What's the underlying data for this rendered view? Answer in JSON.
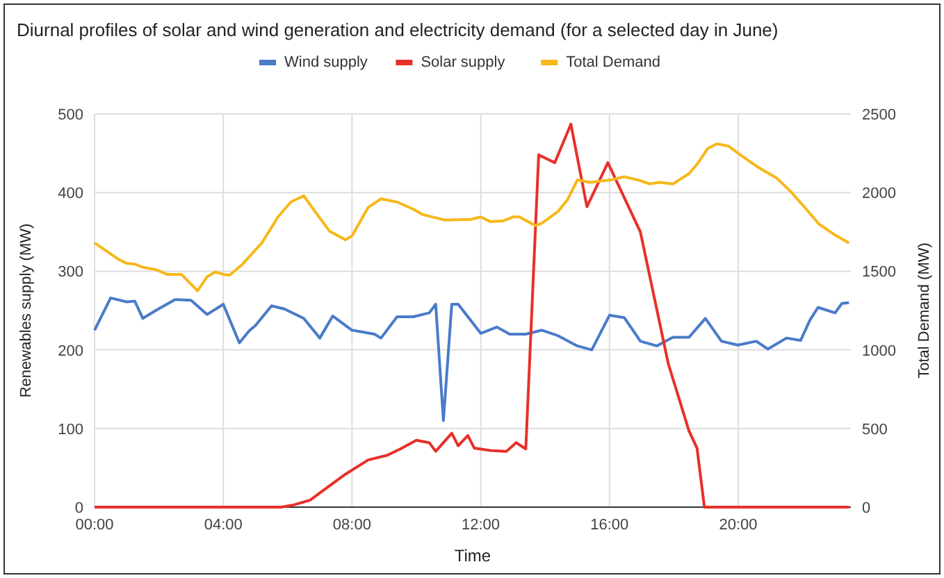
{
  "chart_data": {
    "type": "line",
    "title": "Diurnal profiles of solar and wind generation and electricity demand (for a selected day in June)",
    "xlabel": "Time",
    "ylabel": "Renewables supply (MW)",
    "y2label": "Total Demand (MW)",
    "xlim": [
      0,
      23.5
    ],
    "xticks": [
      {
        "value": 0,
        "label": "00:00"
      },
      {
        "value": 4,
        "label": "04:00"
      },
      {
        "value": 8,
        "label": "08:00"
      },
      {
        "value": 12,
        "label": "12:00"
      },
      {
        "value": 16,
        "label": "16:00"
      },
      {
        "value": 20,
        "label": "20:00"
      }
    ],
    "ylim": [
      0,
      500
    ],
    "yticks": [
      0,
      100,
      200,
      300,
      400,
      500
    ],
    "y2lim": [
      0,
      2500
    ],
    "y2ticks": [
      0,
      500,
      1000,
      1500,
      2000,
      2500
    ],
    "grid": true,
    "legend": "top",
    "line_style": "solid",
    "marker": "none",
    "series": [
      {
        "name": "Wind supply",
        "color": "#4a7bc8",
        "x": [
          0,
          0.5,
          1,
          1.25,
          1.5,
          1.9,
          2.5,
          3,
          3.5,
          4,
          4.5,
          4.8,
          5,
          5.5,
          5.9,
          6.5,
          7,
          7.4,
          8,
          8.7,
          8.9,
          9.4,
          9.9,
          10.4,
          10.6,
          10.84,
          11.1,
          11.3,
          12,
          12.5,
          12.9,
          13.4,
          13.9,
          14.4,
          15,
          15.45,
          16,
          16.46,
          16.96,
          17.47,
          17.97,
          18.47,
          18.98,
          19.48,
          19.99,
          20.56,
          20.92,
          21.5,
          21.94,
          22.23,
          22.48,
          23.01,
          23.22,
          23.44
        ],
        "values": [
          225,
          266,
          261,
          262,
          240,
          250,
          264,
          263,
          245,
          258,
          209,
          224,
          231,
          256,
          252,
          240,
          215,
          243,
          225,
          220,
          215,
          242,
          242,
          247,
          258,
          110,
          258,
          258,
          221,
          229,
          220,
          220,
          225,
          218,
          205,
          200,
          244,
          241,
          211,
          205,
          216,
          216,
          240,
          211,
          206,
          211,
          201,
          215,
          212,
          238,
          254,
          247,
          259,
          260
        ]
      },
      {
        "name": "Solar supply",
        "color": "#e8302a",
        "x": [
          0,
          5.8,
          6.2,
          6.7,
          7.1,
          7.8,
          8.5,
          9.1,
          9.5,
          10,
          10.4,
          10.6,
          11.1,
          11.3,
          11.6,
          11.8,
          12.3,
          12.8,
          13.1,
          13.4,
          13.8,
          14.3,
          14.8,
          15.3,
          15.95,
          16.96,
          17.4,
          17.83,
          18.47,
          18.72,
          18.95,
          23.44
        ],
        "values": [
          0,
          0,
          3,
          9,
          21,
          42,
          60,
          66,
          74,
          85,
          82,
          71,
          94,
          78,
          91,
          75,
          72,
          71,
          82,
          74,
          448,
          438,
          487,
          382,
          438,
          350,
          265,
          182,
          97,
          75,
          0,
          0
        ]
      },
      {
        "name": "Total Demand",
        "color": "#f6b81a",
        "axis": "y2",
        "x": [
          0,
          0.75,
          1,
          1.25,
          1.5,
          1.9,
          2.25,
          2.7,
          3.2,
          3.5,
          3.75,
          4,
          4.2,
          4.6,
          5.2,
          5.7,
          6.1,
          6.5,
          6.85,
          7.3,
          7.8,
          8,
          8.5,
          8.9,
          9.4,
          9.9,
          10.2,
          10.9,
          11.7,
          12,
          12.3,
          12.7,
          13,
          13.2,
          13.7,
          13.9,
          14.4,
          14.7,
          15,
          15.4,
          16.03,
          16.46,
          16.89,
          17.25,
          17.54,
          17.97,
          18.47,
          18.76,
          19.05,
          19.34,
          19.7,
          20.13,
          20.63,
          21.21,
          21.64,
          22.07,
          22.51,
          23.01,
          23.44
        ],
        "values": [
          1680,
          1575,
          1550,
          1545,
          1525,
          1510,
          1480,
          1480,
          1375,
          1465,
          1495,
          1480,
          1475,
          1545,
          1680,
          1845,
          1940,
          1980,
          1880,
          1755,
          1700,
          1725,
          1905,
          1960,
          1940,
          1895,
          1860,
          1825,
          1830,
          1845,
          1815,
          1820,
          1845,
          1845,
          1790,
          1805,
          1880,
          1955,
          2080,
          2065,
          2080,
          2100,
          2080,
          2055,
          2065,
          2055,
          2120,
          2190,
          2280,
          2310,
          2295,
          2230,
          2160,
          2090,
          2005,
          1905,
          1800,
          1730,
          1680
        ]
      }
    ]
  }
}
